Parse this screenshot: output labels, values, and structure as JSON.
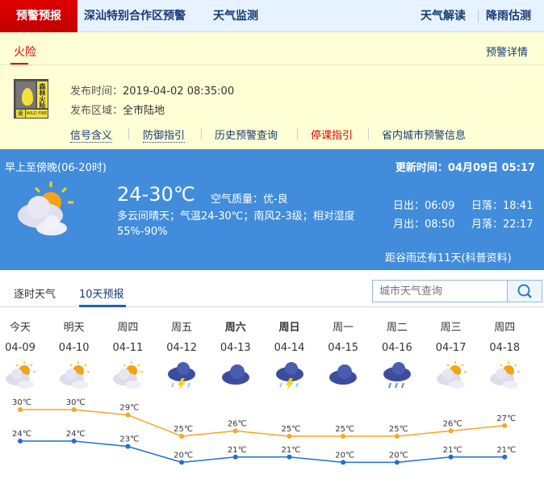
{
  "nav": {
    "active": "预警预报",
    "items": [
      "深汕特别合作区预警",
      "天气监测"
    ],
    "right": [
      "天气解读",
      "降雨估测"
    ]
  },
  "alert": {
    "tab": "火险",
    "detail": "预警详情",
    "badge": {
      "text": "森林火险",
      "level": "黄",
      "english": "WILD FIRE",
      "color": "#f2e23a"
    },
    "time_label": "发布时间：",
    "time": "2019-04-02 08:35:00",
    "area_label": "发布区域：",
    "area": "全市陆地",
    "links": [
      "信号含义",
      "防御指引",
      "历史预警查询",
      "停课指引",
      "省内城市预警信息"
    ]
  },
  "today": {
    "period": "早上至傍晚(06-20时)",
    "updated": "更新时间：04月09日 05:17",
    "temp": "24-30℃",
    "air": "空气质量：优-良",
    "desc": "多云间晴天；气温24-30℃；南风2-3级；相对湿度55%-90%",
    "sunrise": "日出：06:09",
    "sunset": "日落：18:41",
    "moonrise": "月出：08:50",
    "moonset": "月落：22:17",
    "solar_term": "距谷雨还有11天(科普资料)",
    "icon": "partly-cloudy-icon"
  },
  "tabs": {
    "hourly": "逐时天气",
    "tenday": "10天预报"
  },
  "search": {
    "placeholder": "城市天气查询"
  },
  "forecast": [
    {
      "day": "今天",
      "date": "04-09",
      "icon": "partly-cloudy",
      "high": "30℃",
      "low": "24℃"
    },
    {
      "day": "明天",
      "date": "04-10",
      "icon": "partly-cloudy",
      "high": "30℃",
      "low": "24℃"
    },
    {
      "day": "周四",
      "date": "04-11",
      "icon": "partly-cloudy",
      "high": "29℃",
      "low": "23℃"
    },
    {
      "day": "周五",
      "date": "04-12",
      "icon": "thunderstorm",
      "high": "25℃",
      "low": "20℃"
    },
    {
      "day": "周六",
      "date": "04-13",
      "icon": "cloudy",
      "high": "26℃",
      "low": "21℃",
      "weekend": true
    },
    {
      "day": "周日",
      "date": "04-14",
      "icon": "thunderstorm",
      "high": "25℃",
      "low": "21℃",
      "weekend": true
    },
    {
      "day": "周一",
      "date": "04-15",
      "icon": "cloudy",
      "high": "25℃",
      "low": "20℃"
    },
    {
      "day": "周二",
      "date": "04-16",
      "icon": "rain",
      "high": "25℃",
      "low": "20℃"
    },
    {
      "day": "周三",
      "date": "04-17",
      "icon": "partly-cloudy",
      "high": "26℃",
      "low": "21℃"
    },
    {
      "day": "周四",
      "date": "04-18",
      "icon": "partly-cloudy",
      "high": "27℃",
      "low": "21℃"
    }
  ],
  "colors": {
    "high": "#f5a623",
    "low": "#1e6fd0",
    "accent": "#418cdb",
    "alert_red": "#e30000"
  }
}
